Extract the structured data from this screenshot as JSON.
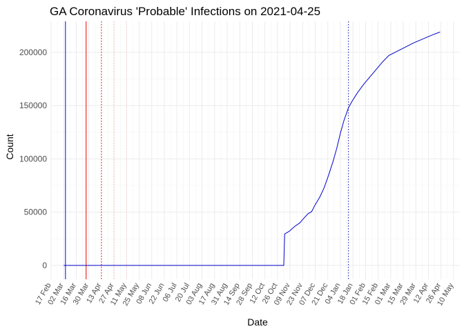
{
  "chart_data": {
    "type": "line",
    "title": "GA Coronavirus 'Probable' Infections on 2021-04-25",
    "xlabel": "Date",
    "ylabel": "Count",
    "xlim": [
      "2020-02-17",
      "2021-05-17"
    ],
    "ylim": [
      -13000,
      229000
    ],
    "y_ticks": [
      0,
      50000,
      100000,
      150000,
      200000
    ],
    "x_tick_labels": [
      "17 Feb",
      "02 Mar",
      "16 Mar",
      "30 Mar",
      "13 Apr",
      "27 Apr",
      "11 May",
      "25 May",
      "08 Jun",
      "22 Jun",
      "06 Jul",
      "20 Jul",
      "03 Aug",
      "17 Aug",
      "31 Aug",
      "14 Sep",
      "28 Sep",
      "12 Oct",
      "26 Oct",
      "09 Nov",
      "23 Nov",
      "07 Dec",
      "21 Dec",
      "04 Jan",
      "18 Jan",
      "01 Feb",
      "15 Feb",
      "01 Mar",
      "15 Mar",
      "29 Mar",
      "12 Apr",
      "26 Apr",
      "10 May"
    ],
    "x_tick_dates": [
      "2020-02-17",
      "2020-03-02",
      "2020-03-16",
      "2020-03-30",
      "2020-04-13",
      "2020-04-27",
      "2020-05-11",
      "2020-05-25",
      "2020-06-08",
      "2020-06-22",
      "2020-07-06",
      "2020-07-20",
      "2020-08-03",
      "2020-08-17",
      "2020-08-31",
      "2020-09-14",
      "2020-09-28",
      "2020-10-12",
      "2020-10-26",
      "2020-11-09",
      "2020-11-23",
      "2020-12-07",
      "2020-12-21",
      "2021-01-04",
      "2021-01-18",
      "2021-02-01",
      "2021-02-15",
      "2021-03-01",
      "2021-03-15",
      "2021-03-29",
      "2021-04-12",
      "2021-04-26",
      "2021-05-10"
    ],
    "grid": true,
    "line_color": "#0000cc",
    "series": [
      {
        "color": "#0000cc",
        "points": [
          [
            "2020-03-02",
            0
          ],
          [
            "2020-11-02",
            0
          ],
          [
            "2020-11-03",
            29500
          ],
          [
            "2020-11-08",
            32000
          ],
          [
            "2020-11-14",
            36500
          ],
          [
            "2020-11-20",
            40000
          ],
          [
            "2020-11-24",
            44000
          ],
          [
            "2020-11-29",
            48500
          ],
          [
            "2020-12-03",
            50500
          ],
          [
            "2020-12-07",
            57000
          ],
          [
            "2020-12-12",
            64000
          ],
          [
            "2020-12-17",
            73000
          ],
          [
            "2020-12-22",
            85000
          ],
          [
            "2020-12-27",
            98000
          ],
          [
            "2020-12-31",
            110000
          ],
          [
            "2021-01-04",
            124000
          ],
          [
            "2021-01-08",
            136000
          ],
          [
            "2021-01-13",
            148000
          ],
          [
            "2021-01-17",
            154000
          ],
          [
            "2021-01-23",
            162000
          ],
          [
            "2021-01-30",
            170000
          ],
          [
            "2021-02-06",
            177000
          ],
          [
            "2021-02-13",
            184000
          ],
          [
            "2021-02-20",
            191000
          ],
          [
            "2021-02-27",
            197000
          ],
          [
            "2021-03-06",
            200000
          ],
          [
            "2021-03-13",
            203000
          ],
          [
            "2021-03-20",
            206000
          ],
          [
            "2021-03-27",
            209000
          ],
          [
            "2021-04-03",
            211500
          ],
          [
            "2021-04-10",
            214000
          ],
          [
            "2021-04-17",
            216500
          ],
          [
            "2021-04-25",
            219000
          ]
        ]
      }
    ],
    "reference_lines": [
      {
        "date": "2020-03-04",
        "color": "#0000ff",
        "style": "solid"
      },
      {
        "date": "2020-03-27",
        "color": "#e00000",
        "style": "solid"
      },
      {
        "date": "2020-04-13",
        "color": "#cc0000",
        "style": "dotted"
      },
      {
        "date": "2020-04-27",
        "color": "#ffaaaa",
        "style": "dotted"
      },
      {
        "date": "2020-05-11",
        "color": "#ffcccc",
        "style": "dotted"
      },
      {
        "date": "2021-01-13",
        "color": "#0000aa",
        "style": "dotted"
      }
    ]
  }
}
